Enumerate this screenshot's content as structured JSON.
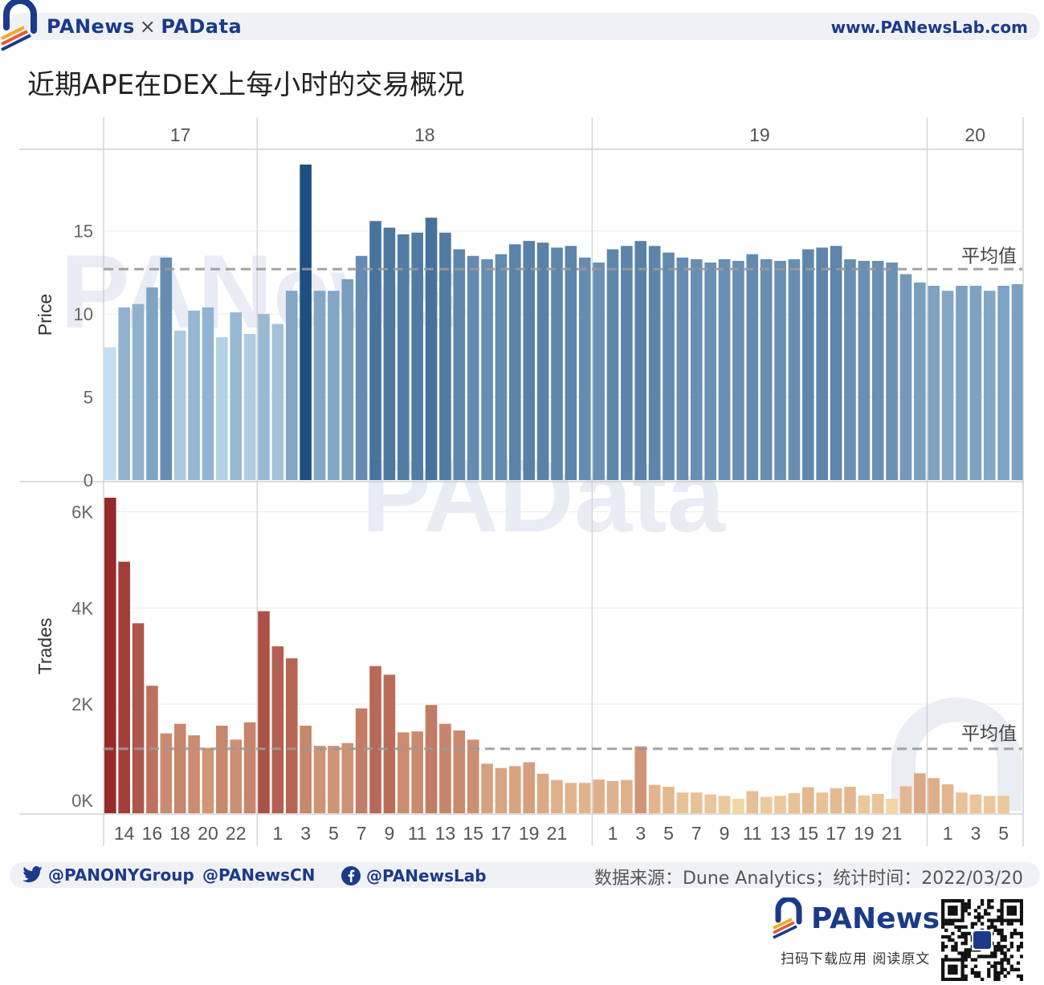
{
  "header": {
    "brand_left": "PANews",
    "brand_sep": "×",
    "brand_right": "PAData",
    "site": "www.PANewsLab.com"
  },
  "title": "近期APE在DEX上每小时的交易概况",
  "footer": {
    "twitter": "@PANONYGroup",
    "twitter2": "@PANewsCN",
    "facebook": "@PANewsLab",
    "source": "数据来源：Dune Analytics；统计时间：2022/03/20",
    "brand": "PANews",
    "download": "扫码下载应用  阅读原文"
  },
  "colors": {
    "price_light": "#c3def0",
    "price_dark": "#1f4e80",
    "trades_light": "#f3d5a6",
    "trades_dark": "#962a2a",
    "brand": "#1b3a8a"
  },
  "icons": [
    "panews-logo-icon",
    "twitter-icon",
    "facebook-icon",
    "qr-code-icon"
  ],
  "chart_data": [
    {
      "type": "bar",
      "ylabel": "Price",
      "ylim": [
        0,
        19.5
      ],
      "yticks": [
        0,
        5,
        10,
        15
      ],
      "mean_label": "平均值",
      "mean": 12.7,
      "date_labels": [
        "17",
        "18",
        "19",
        "20"
      ],
      "x_tick_labels": [
        "14",
        "16",
        "18",
        "20",
        "22",
        "1",
        "3",
        "5",
        "7",
        "9",
        "11",
        "13",
        "15",
        "17",
        "19",
        "21",
        "1",
        "3",
        "5",
        "7",
        "9",
        "11",
        "13",
        "15",
        "17",
        "19",
        "21",
        "1",
        "3",
        "5"
      ],
      "hours": [
        {
          "day": "17",
          "hour": 13,
          "price": 8.0
        },
        {
          "day": "17",
          "hour": 14,
          "price": 10.4
        },
        {
          "day": "17",
          "hour": 15,
          "price": 10.6
        },
        {
          "day": "17",
          "hour": 16,
          "price": 11.6
        },
        {
          "day": "17",
          "hour": 17,
          "price": 13.4
        },
        {
          "day": "17",
          "hour": 18,
          "price": 9.0
        },
        {
          "day": "17",
          "hour": 19,
          "price": 10.2
        },
        {
          "day": "17",
          "hour": 20,
          "price": 10.4
        },
        {
          "day": "17",
          "hour": 21,
          "price": 8.6
        },
        {
          "day": "17",
          "hour": 22,
          "price": 10.1
        },
        {
          "day": "17",
          "hour": 23,
          "price": 8.8
        },
        {
          "day": "18",
          "hour": 0,
          "price": 10.0
        },
        {
          "day": "18",
          "hour": 1,
          "price": 9.4
        },
        {
          "day": "18",
          "hour": 2,
          "price": 11.4
        },
        {
          "day": "18",
          "hour": 3,
          "price": 19.0
        },
        {
          "day": "18",
          "hour": 4,
          "price": 11.4
        },
        {
          "day": "18",
          "hour": 5,
          "price": 11.4
        },
        {
          "day": "18",
          "hour": 6,
          "price": 12.1
        },
        {
          "day": "18",
          "hour": 7,
          "price": 13.5
        },
        {
          "day": "18",
          "hour": 8,
          "price": 15.6
        },
        {
          "day": "18",
          "hour": 9,
          "price": 15.2
        },
        {
          "day": "18",
          "hour": 10,
          "price": 14.8
        },
        {
          "day": "18",
          "hour": 11,
          "price": 14.9
        },
        {
          "day": "18",
          "hour": 12,
          "price": 15.8
        },
        {
          "day": "18",
          "hour": 13,
          "price": 14.9
        },
        {
          "day": "18",
          "hour": 14,
          "price": 13.9
        },
        {
          "day": "18",
          "hour": 15,
          "price": 13.5
        },
        {
          "day": "18",
          "hour": 16,
          "price": 13.3
        },
        {
          "day": "18",
          "hour": 17,
          "price": 13.6
        },
        {
          "day": "18",
          "hour": 18,
          "price": 14.2
        },
        {
          "day": "18",
          "hour": 19,
          "price": 14.4
        },
        {
          "day": "18",
          "hour": 20,
          "price": 14.3
        },
        {
          "day": "18",
          "hour": 21,
          "price": 14.0
        },
        {
          "day": "18",
          "hour": 22,
          "price": 14.1
        },
        {
          "day": "18",
          "hour": 23,
          "price": 13.4
        },
        {
          "day": "19",
          "hour": 0,
          "price": 13.1
        },
        {
          "day": "19",
          "hour": 1,
          "price": 13.9
        },
        {
          "day": "19",
          "hour": 2,
          "price": 14.1
        },
        {
          "day": "19",
          "hour": 3,
          "price": 14.4
        },
        {
          "day": "19",
          "hour": 4,
          "price": 14.1
        },
        {
          "day": "19",
          "hour": 5,
          "price": 13.7
        },
        {
          "day": "19",
          "hour": 6,
          "price": 13.4
        },
        {
          "day": "19",
          "hour": 7,
          "price": 13.3
        },
        {
          "day": "19",
          "hour": 8,
          "price": 13.1
        },
        {
          "day": "19",
          "hour": 9,
          "price": 13.3
        },
        {
          "day": "19",
          "hour": 10,
          "price": 13.2
        },
        {
          "day": "19",
          "hour": 11,
          "price": 13.6
        },
        {
          "day": "19",
          "hour": 12,
          "price": 13.3
        },
        {
          "day": "19",
          "hour": 13,
          "price": 13.2
        },
        {
          "day": "19",
          "hour": 14,
          "price": 13.3
        },
        {
          "day": "19",
          "hour": 15,
          "price": 13.9
        },
        {
          "day": "19",
          "hour": 16,
          "price": 14.0
        },
        {
          "day": "19",
          "hour": 17,
          "price": 14.1
        },
        {
          "day": "19",
          "hour": 18,
          "price": 13.3
        },
        {
          "day": "19",
          "hour": 19,
          "price": 13.2
        },
        {
          "day": "19",
          "hour": 20,
          "price": 13.2
        },
        {
          "day": "19",
          "hour": 21,
          "price": 13.1
        },
        {
          "day": "19",
          "hour": 22,
          "price": 12.4
        },
        {
          "day": "19",
          "hour": 23,
          "price": 11.9
        },
        {
          "day": "20",
          "hour": 0,
          "price": 11.7
        },
        {
          "day": "20",
          "hour": 1,
          "price": 11.4
        },
        {
          "day": "20",
          "hour": 2,
          "price": 11.7
        },
        {
          "day": "20",
          "hour": 3,
          "price": 11.7
        },
        {
          "day": "20",
          "hour": 4,
          "price": 11.4
        },
        {
          "day": "20",
          "hour": 5,
          "price": 11.7
        },
        {
          "day": "20",
          "hour": 6,
          "price": 11.8
        }
      ]
    },
    {
      "type": "bar",
      "ylabel": "Trades",
      "ylim": [
        0,
        6800
      ],
      "yticks": [
        0,
        2000,
        4000,
        6000
      ],
      "ytick_labels": [
        "0K",
        "2K",
        "4K",
        "6K"
      ],
      "mean_label": "平均值",
      "mean": 1340,
      "values": [
        6560,
        5230,
        3950,
        2650,
        1660,
        1860,
        1620,
        1360,
        1820,
        1530,
        1890,
        4200,
        3470,
        3220,
        1820,
        1400,
        1400,
        1460,
        2180,
        3060,
        2880,
        1680,
        1700,
        2250,
        1860,
        1720,
        1530,
        1030,
        940,
        980,
        1060,
        820,
        690,
        630,
        630,
        700,
        670,
        690,
        1390,
        590,
        550,
        430,
        430,
        390,
        360,
        300,
        460,
        340,
        360,
        420,
        540,
        430,
        520,
        550,
        370,
        400,
        300,
        560,
        830,
        730,
        600,
        430,
        390,
        360,
        360
      ]
    }
  ]
}
